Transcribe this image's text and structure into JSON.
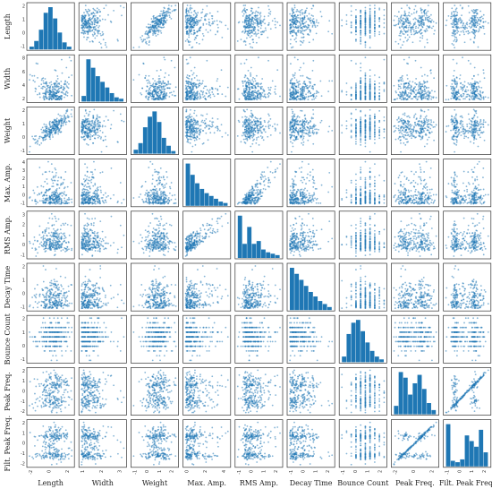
{
  "chart_data": {
    "type": "scatter-matrix",
    "variables": [
      "Length",
      "Width",
      "Weight",
      "Max. Amp.",
      "RMS Amp.",
      "Decay Time",
      "Bounce Count",
      "Peak Freq.",
      "Filt. Peak Freq."
    ],
    "diag_hist": [
      [
        2,
        6,
        14,
        26,
        30,
        22,
        12,
        5,
        2
      ],
      [
        4,
        30,
        24,
        18,
        14,
        10,
        6,
        3,
        2
      ],
      [
        3,
        8,
        20,
        28,
        32,
        24,
        12,
        6,
        2
      ],
      [
        30,
        22,
        16,
        12,
        9,
        7,
        5,
        3,
        2
      ],
      [
        30,
        10,
        22,
        10,
        12,
        6,
        4,
        3,
        2
      ],
      [
        28,
        24,
        20,
        16,
        12,
        9,
        6,
        4,
        2
      ],
      [
        4,
        20,
        28,
        30,
        22,
        14,
        8,
        4,
        2
      ],
      [
        6,
        30,
        26,
        14,
        22,
        28,
        18,
        8,
        3
      ],
      [
        30,
        4,
        3,
        5,
        22,
        18,
        14,
        26,
        10
      ]
    ],
    "bottom_ticks": [
      [
        "-2",
        "0",
        "2"
      ],
      [
        "1",
        "2",
        "3"
      ],
      [
        "-1",
        "0",
        "1",
        "2"
      ],
      [
        "0",
        "2",
        "4"
      ],
      [
        "-1",
        "0",
        "1",
        "2"
      ],
      [
        "-1",
        "0",
        "1",
        "2"
      ],
      [
        "-1",
        "0",
        "1",
        "2"
      ],
      [
        "-2",
        "0",
        "2"
      ],
      [
        "-1",
        "0",
        "1",
        "2"
      ]
    ],
    "left_ticks": [
      [
        "2",
        "1",
        "0",
        "-1"
      ],
      [
        "8",
        "6",
        "4",
        "2"
      ],
      [
        "2",
        "1",
        "0",
        "-1"
      ],
      [
        "4",
        "3",
        "2",
        "1",
        "0",
        "-1"
      ],
      [
        "3",
        "2",
        "1",
        "0",
        "-1"
      ],
      [
        "2",
        "1",
        "0",
        "-1"
      ],
      [
        "2",
        "1",
        "0",
        "-1"
      ],
      [
        "2",
        "1",
        "0",
        "-1",
        "-2"
      ],
      [
        "2",
        "1",
        "0",
        "-1",
        "-2"
      ]
    ],
    "point_color": "#1f77b4",
    "points_per_panel": 260
  }
}
